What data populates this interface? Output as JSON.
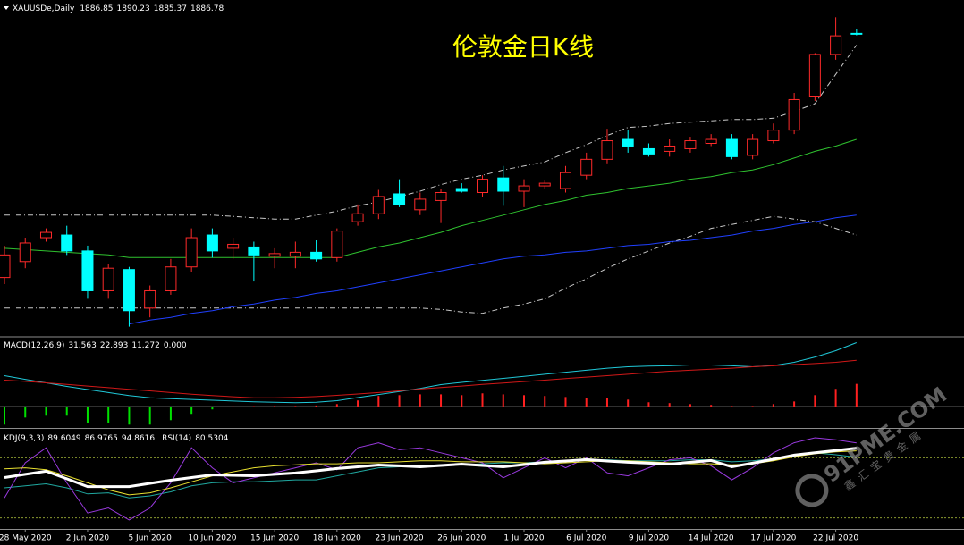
{
  "chart_data": [
    {
      "type": "candlestick",
      "symbol": "XAUUSDe,Daily",
      "title": "伦敦金日K线",
      "categories": [
        null,
        "28 May 2020",
        null,
        null,
        "2 Jun 2020",
        null,
        null,
        "5 Jun 2020",
        null,
        null,
        "10 Jun 2020",
        null,
        null,
        "15 Jun 2020",
        null,
        null,
        "18 Jun 2020",
        null,
        null,
        "23 Jun 2020",
        null,
        null,
        "26 Jun 2020",
        null,
        null,
        "1 Jul 2020",
        null,
        null,
        "6 Jul 2020",
        null,
        null,
        "9 Jul 2020",
        null,
        null,
        "14 Jul 2020",
        null,
        null,
        "17 Jul 2020",
        null,
        null,
        "22 Jul 2020",
        null
      ],
      "open": [
        1703,
        1715,
        1733,
        1735,
        1723,
        1693,
        1709,
        1680,
        1693,
        1711,
        1735,
        1725,
        1726,
        1719,
        1719,
        1722,
        1718,
        1745,
        1751,
        1766,
        1754,
        1761,
        1770,
        1767,
        1778,
        1768,
        1772,
        1770,
        1780,
        1792,
        1807,
        1800,
        1798,
        1800,
        1804,
        1807,
        1795,
        1806,
        1814,
        1839,
        1871,
        1886.85
      ],
      "high": [
        1727,
        1733,
        1740,
        1742,
        1727,
        1713,
        1711,
        1697,
        1717,
        1740,
        1740,
        1733,
        1730,
        1725,
        1730,
        1731,
        1740,
        1758,
        1769,
        1777,
        1767,
        1770,
        1774,
        1780,
        1787,
        1777,
        1776,
        1787,
        1797,
        1815,
        1814,
        1804,
        1807,
        1809,
        1811,
        1811,
        1811,
        1819,
        1842,
        1872,
        1899,
        1890.23
      ],
      "low": [
        1698,
        1710,
        1730,
        1720,
        1687,
        1687,
        1666,
        1673,
        1690,
        1707,
        1718,
        1717,
        1700,
        1710,
        1710,
        1715,
        1715,
        1742,
        1747,
        1756,
        1750,
        1744,
        1767,
        1764,
        1757,
        1756,
        1770,
        1767,
        1777,
        1789,
        1797,
        1794,
        1794,
        1797,
        1802,
        1792,
        1792,
        1804,
        1811,
        1836,
        1867,
        1885.37
      ],
      "close": [
        1720,
        1729,
        1737,
        1723,
        1693,
        1710,
        1678,
        1693,
        1711,
        1733,
        1723,
        1728,
        1720,
        1721,
        1722,
        1717,
        1738,
        1751,
        1764,
        1758,
        1762,
        1767,
        1768,
        1777,
        1768,
        1772,
        1774,
        1782,
        1792,
        1806,
        1802,
        1796,
        1802,
        1806,
        1807,
        1794,
        1807,
        1814,
        1837,
        1871,
        1885,
        1886.78
      ],
      "up_color": "#ff2a2a",
      "down_color": "#00ffff",
      "title_color": "#ffff00",
      "ylim": [
        1659,
        1912
      ],
      "series": [
        {
          "color": "#c8c8c8",
          "style": "dashdot",
          "values": [
            1750,
            1750,
            1750,
            1750,
            1750,
            1750,
            1750,
            1750,
            1750,
            1750,
            1750,
            1749,
            1748,
            1747,
            1747,
            1750,
            1753,
            1757,
            1760,
            1764,
            1768,
            1773,
            1777,
            1780,
            1784,
            1787,
            1790,
            1797,
            1803,
            1810,
            1816,
            1817,
            1819,
            1820,
            1821,
            1822,
            1822,
            1823,
            1828,
            1834,
            1856,
            1878
          ]
        },
        {
          "color": "#c8c8c8",
          "style": "dashdot",
          "values": [
            1680,
            1680,
            1680,
            1680,
            1680,
            1680,
            1680,
            1680,
            1680,
            1680,
            1680,
            1680,
            1680,
            1680,
            1680,
            1680,
            1680,
            1680,
            1680,
            1680,
            1680,
            1679,
            1677,
            1676,
            1680,
            1683,
            1687,
            1695,
            1702,
            1710,
            1717,
            1723,
            1729,
            1734,
            1740,
            1743,
            1746,
            1749,
            1747,
            1745,
            1740,
            1735
          ]
        },
        {
          "color": "#2fc22f",
          "style": "solid",
          "values": [
            1725,
            1724,
            1723,
            1722,
            1721,
            1720,
            1718,
            1718,
            1718,
            1718,
            1718,
            1718,
            1718,
            1718,
            1718,
            1718,
            1718,
            1722,
            1726,
            1729,
            1733,
            1737,
            1742,
            1746,
            1750,
            1754,
            1758,
            1761,
            1765,
            1767,
            1770,
            1772,
            1774,
            1777,
            1779,
            1782,
            1784,
            1788,
            1793,
            1798,
            1802,
            1807
          ]
        },
        {
          "color": "#2040ff",
          "style": "solid",
          "values": [
            null,
            null,
            null,
            null,
            null,
            null,
            1668,
            1671,
            1673,
            1676,
            1678,
            1681,
            1683,
            1686,
            1688,
            1691,
            1693,
            1696,
            1699,
            1702,
            1705,
            1708,
            1711,
            1714,
            1717,
            1719,
            1720,
            1722,
            1723,
            1725,
            1727,
            1728,
            1730,
            1731,
            1733,
            1735,
            1738,
            1740,
            1743,
            1745,
            1748,
            1750
          ]
        }
      ]
    },
    {
      "type": "macd",
      "title": "MACD(12,26,9)",
      "ylim": [
        -10,
        34
      ],
      "zero_level": {
        "value": 0,
        "label": "0.000"
      },
      "series": [
        {
          "color": "#20c8d8",
          "values": [
            15.3,
            13.5,
            11.8,
            10,
            8.5,
            7,
            5.5,
            4.4,
            4,
            3.6,
            3.2,
            2.8,
            2.4,
            2.2,
            2,
            2.2,
            3,
            4.5,
            6,
            7.5,
            9,
            10.9,
            12,
            13,
            14,
            15,
            16,
            17,
            18,
            19,
            19.7,
            20,
            20.2,
            20.6,
            20.6,
            20.2,
            19.7,
            20.3,
            21.9,
            24.5,
            27.6,
            31.563
          ]
        },
        {
          "color": "#d01818",
          "values": [
            13.1,
            12.5,
            11.8,
            11,
            10.2,
            9.4,
            8.6,
            7.8,
            7,
            6.2,
            5.5,
            4.9,
            4.4,
            4.4,
            4.6,
            5,
            5.6,
            6.3,
            7,
            7.8,
            8.75,
            9.5,
            10.2,
            11,
            11.7,
            12.4,
            13.1,
            13.9,
            14.6,
            15.3,
            16,
            16.8,
            17.5,
            18,
            18.5,
            19,
            19.7,
            20.2,
            20.8,
            21.3,
            21.9,
            22.893
          ]
        }
      ],
      "histogram": {
        "up_color": "#ff2020",
        "down_color": "#00e000",
        "values": [
          -8.8,
          -5.3,
          -4.4,
          -4.4,
          -7.9,
          -7.9,
          -8.8,
          -8.8,
          -6.6,
          -3.5,
          -1.3,
          0.2,
          0.3,
          0.4,
          0.4,
          0.6,
          1.3,
          3.1,
          5.3,
          5.7,
          6.1,
          6.1,
          5.7,
          6.6,
          6.1,
          5.7,
          5.3,
          4.8,
          4.4,
          4.4,
          3.5,
          2.2,
          1.8,
          1.3,
          0.9,
          0.4,
          0.4,
          1.3,
          2.6,
          5.7,
          8.8,
          11.272
        ]
      }
    },
    {
      "type": "line",
      "title": "KDJ(9,3,3)",
      "rsi_title": "RSI(14)",
      "ylim": [
        9,
        108
      ],
      "levels": [
        20,
        80
      ],
      "level_color": "#8a9a30",
      "series": [
        {
          "color": "#ffffff",
          "width": 3,
          "values": [
            60.3,
            63.5,
            66.6,
            59,
            51.3,
            51.3,
            51.3,
            54.5,
            57.6,
            60.3,
            63,
            62.5,
            62.1,
            63.5,
            64.8,
            67,
            69.3,
            71,
            72.8,
            72,
            71,
            72.3,
            73.7,
            72.3,
            71,
            73.2,
            75.5,
            76.8,
            78.2,
            76.8,
            75.5,
            74.6,
            73.7,
            75.5,
            77.3,
            71,
            74.6,
            78.6,
            82.7,
            85,
            87.2,
            89.6049
          ]
        },
        {
          "color": "#e8e030",
          "width": 1,
          "values": [
            69,
            70,
            68,
            62,
            55,
            48,
            43,
            45,
            50,
            56,
            62,
            66,
            70,
            72,
            73,
            74,
            74,
            75,
            75,
            76,
            77,
            77,
            76,
            76,
            76,
            75,
            74,
            75,
            76,
            77,
            77,
            76,
            75,
            74,
            74,
            73,
            74,
            77,
            81,
            84,
            86,
            86.9765
          ]
        },
        {
          "color": "#9a3ae0",
          "width": 1,
          "values": [
            40,
            75,
            90,
            55,
            25,
            30,
            18,
            30,
            55,
            90,
            70,
            55,
            60,
            65,
            70,
            75,
            68,
            90,
            95,
            88,
            90,
            85,
            80,
            75,
            60,
            70,
            80,
            70,
            80,
            65,
            62,
            70,
            78,
            80,
            72,
            58,
            70,
            85,
            95,
            100,
            98,
            94.8616
          ]
        }
      ],
      "rsi_series": {
        "color": "#20a8a0",
        "width": 1,
        "values": [
          50,
          52,
          54,
          50,
          44,
          45,
          40,
          42,
          46,
          52,
          55,
          56,
          56,
          57,
          58,
          58,
          62,
          66,
          70,
          71,
          72,
          73,
          73,
          74,
          75,
          75,
          76,
          77,
          78,
          78,
          77,
          77,
          77,
          78,
          78,
          76,
          77,
          79,
          82,
          85,
          83,
          80.5304
        ]
      }
    }
  ],
  "watermark": {
    "text": "91PME.COM",
    "subtext": "鑫汇宝贵金属"
  }
}
